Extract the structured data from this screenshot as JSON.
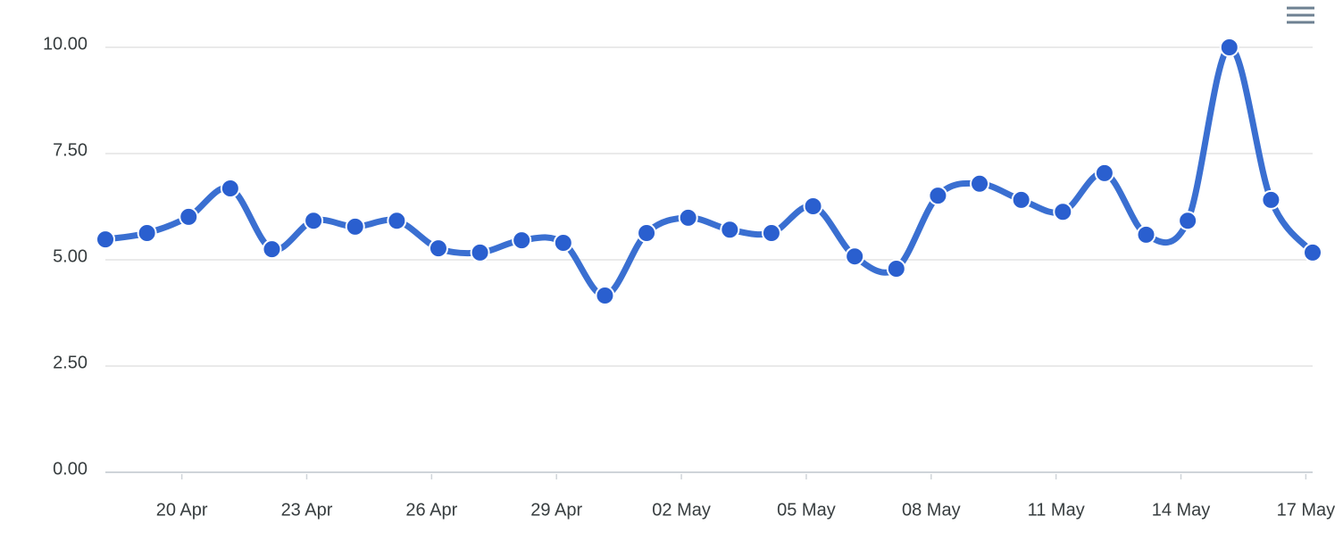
{
  "chart_data": {
    "type": "line",
    "color": "#3a6fd1",
    "x": [
      "19 Apr",
      "20 Apr",
      "21 Apr",
      "22 Apr",
      "23 Apr",
      "24 Apr",
      "25 Apr",
      "26 Apr",
      "27 Apr",
      "28 Apr",
      "29 Apr",
      "30 Apr",
      "01 May",
      "02 May",
      "03 May",
      "04 May",
      "05 May",
      "06 May",
      "07 May",
      "08 May",
      "09 May",
      "10 May",
      "11 May",
      "12 May",
      "13 May",
      "14 May",
      "15 May",
      "16 May",
      "17 May",
      "18 May"
    ],
    "values": [
      5.48,
      5.63,
      6.01,
      6.68,
      5.25,
      5.92,
      5.78,
      5.92,
      5.27,
      5.17,
      5.46,
      5.4,
      4.16,
      5.63,
      5.99,
      5.71,
      5.63,
      6.26,
      5.08,
      4.79,
      6.51,
      6.79,
      6.41,
      6.13,
      7.04,
      5.59,
      5.92,
      10.0,
      6.41,
      5.17
    ],
    "ylim": [
      0,
      10
    ],
    "yticks": [
      {
        "value": 0,
        "label": "0.00"
      },
      {
        "value": 2.5,
        "label": "2.50"
      },
      {
        "value": 5,
        "label": "5.00"
      },
      {
        "value": 7.5,
        "label": "7.50"
      },
      {
        "value": 10,
        "label": "10.00"
      }
    ],
    "xticks": [
      "20 Apr",
      "23 Apr",
      "26 Apr",
      "29 Apr",
      "02 May",
      "05 May",
      "08 May",
      "11 May",
      "14 May",
      "17 May"
    ],
    "grid": true
  }
}
